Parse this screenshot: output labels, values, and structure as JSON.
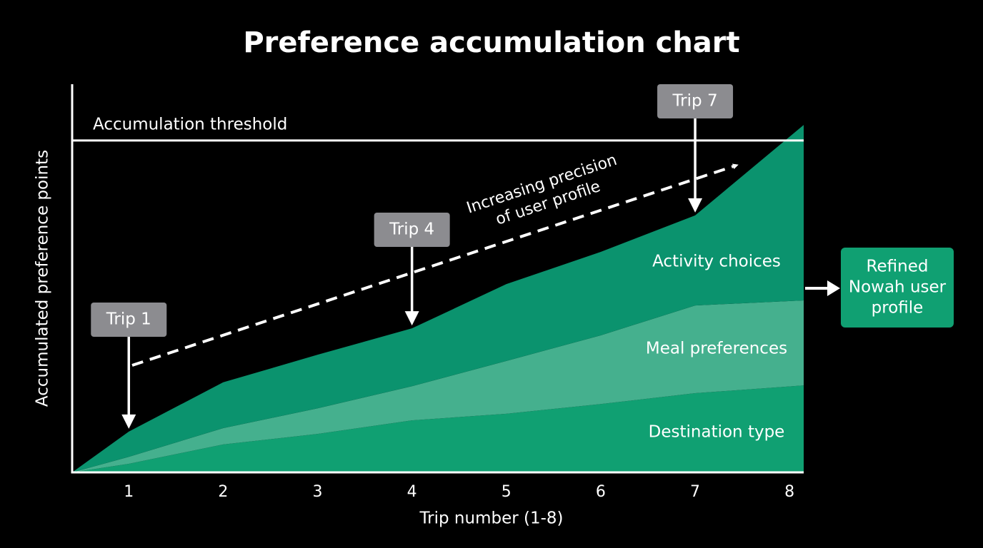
{
  "chart_data": {
    "type": "stacked_area",
    "title": "Preference accumulation chart",
    "x_label": "Trip number (1-8)",
    "y_label": "Accumulated preference points",
    "x": [
      0.4,
      1,
      2,
      3,
      4,
      5,
      6,
      7,
      8.15
    ],
    "xlim": [
      0.4,
      8.15
    ],
    "xticks": [
      1,
      2,
      3,
      4,
      5,
      6,
      7,
      8
    ],
    "ylim": [
      0,
      100
    ],
    "series": [
      {
        "name": "Destination type",
        "color": "#10a072",
        "values": [
          0,
          2.2,
          7.2,
          9.9,
          13.4,
          15.1,
          17.6,
          20.4,
          22.4
        ]
      },
      {
        "name": "Meal preferences",
        "color": "#45b08e",
        "values": [
          0,
          1.8,
          4.2,
          6.6,
          8.8,
          13.6,
          17.7,
          22.6,
          21.9
        ]
      },
      {
        "name": "Activity choices",
        "color": "#0b936e",
        "values": [
          0,
          6.5,
          11.8,
          13.8,
          14.9,
          19.8,
          21.5,
          23.2,
          45.2
        ]
      }
    ],
    "threshold": {
      "label": "Accumulation threshold",
      "value": 85.5
    },
    "callouts": [
      {
        "label": "Trip 1",
        "x_index": 1
      },
      {
        "label": "Trip 4",
        "x_index": 4
      },
      {
        "label": "Trip 7",
        "x_index": 7
      }
    ],
    "trend_label": [
      "Increasing precision",
      "of user profile"
    ],
    "output_box": [
      "Refined",
      "Nowah user",
      "profile"
    ]
  }
}
